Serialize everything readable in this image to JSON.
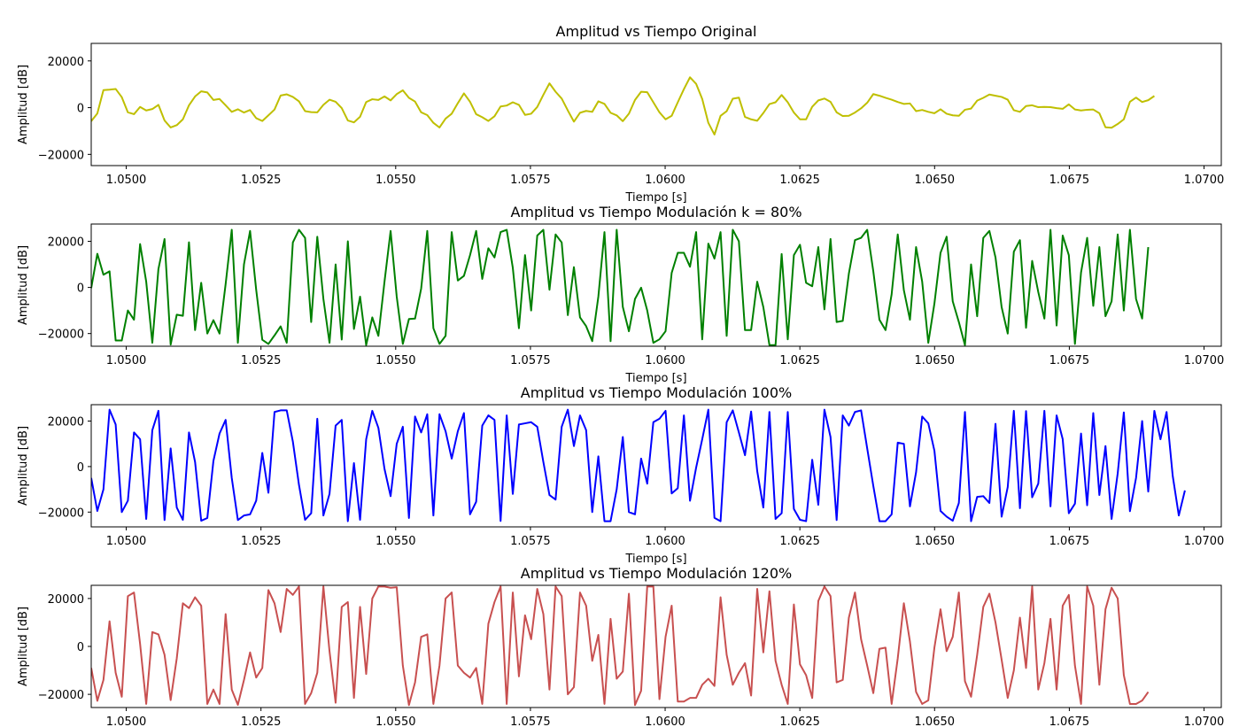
{
  "chart_data": [
    {
      "type": "line",
      "title": "Amplitud vs Tiempo Original",
      "xlabel": "Tiempo [s]",
      "ylabel": "Amplitud [dB]",
      "xlim": [
        1.04935,
        1.07032
      ],
      "ylim": [
        -24800,
        27500
      ],
      "xticks": [
        "1.0500",
        "1.0525",
        "1.0550",
        "1.0575",
        "1.0600",
        "1.0625",
        "1.0650",
        "1.0675",
        "1.0700"
      ],
      "yticks": [
        "20000",
        "0",
        "−20000"
      ],
      "color": "#bfbf00",
      "series": [
        {
          "x_start": 1.04935,
          "x_step": 0.00011338,
          "values": [
            -5800,
            -2500,
            7500,
            7700,
            8000,
            4500,
            -2000,
            -2800,
            300,
            -1200,
            -600,
            1200,
            -5500,
            -8500,
            -7500,
            -5000,
            1000,
            4800,
            7000,
            6500,
            3300,
            3700,
            1000,
            -1800,
            -700,
            -2100,
            -1000,
            -4500,
            -5700,
            -3300,
            -800,
            5200,
            5700,
            4600,
            2700,
            -1500,
            -1900,
            -2000,
            1200,
            3400,
            2500,
            -200,
            -5500,
            -6300,
            -3900,
            2400,
            3600,
            3300,
            4800,
            3100,
            5800,
            7400,
            4200,
            2600,
            -2000,
            -3200,
            -6500,
            -8500,
            -4700,
            -2600,
            1900,
            6100,
            2500,
            -2800,
            -4100,
            -5700,
            -3700,
            500,
            900,
            2300,
            1200,
            -3100,
            -2600,
            300,
            5500,
            10400,
            6800,
            3900,
            -1200,
            -6000,
            -2200,
            -1400,
            -1800,
            2700,
            1600,
            -2200,
            -3300,
            -5800,
            -2600,
            3300,
            6800,
            6600,
            2300,
            -2000,
            -5000,
            -3500,
            2300,
            7900,
            13000,
            10200,
            3700,
            -6500,
            -11500,
            -3500,
            -1500,
            3800,
            4300,
            -4000,
            -5000,
            -5600,
            -2300,
            1500,
            2300,
            5400,
            2300,
            -2100,
            -5000,
            -5000,
            400,
            3100,
            3900,
            2500,
            -2000,
            -3600,
            -3500,
            -2100,
            -300,
            2100,
            5800,
            5100,
            4200,
            3400,
            2400,
            1600,
            1800,
            -1500,
            -1000,
            -1800,
            -2400,
            -700,
            -2600,
            -3300,
            -3500,
            -900,
            -400,
            3000,
            4200,
            5600,
            5100,
            4600,
            3400,
            -1100,
            -1800,
            700,
            1000,
            200,
            300,
            200,
            -200,
            -500,
            1400,
            -800,
            -1200,
            -900,
            -800,
            -2400,
            -8400,
            -8600,
            -7000,
            -5000,
            2500,
            4300,
            2400,
            3200,
            5000
          ]
        }
      ]
    },
    {
      "type": "line",
      "title": "Amplitud vs Tiempo Modulación k = 80%",
      "xlabel": "Tiempo [s]",
      "ylabel": "Amplitud [dB]",
      "xlim": [
        1.04935,
        1.07032
      ],
      "ylim": [
        -25500,
        27500
      ],
      "xticks": [
        "1.0500",
        "1.0525",
        "1.0550",
        "1.0575",
        "1.0600",
        "1.0625",
        "1.0650",
        "1.0675",
        "1.0700"
      ],
      "yticks": [
        "20000",
        "0",
        "−20000"
      ],
      "color": "#008000",
      "series": [
        {
          "x_start": 1.04935,
          "x_step": 0.00011338,
          "values": [
            -300,
            14600,
            5500,
            7000,
            -23000,
            -23000,
            -10000,
            -14000,
            18800,
            2500,
            -24000,
            8000,
            21000,
            -24800,
            -11800,
            -12300,
            19600,
            -18500,
            2000,
            -20000,
            -14200,
            -20000,
            1500,
            25000,
            -24000,
            10000,
            24500,
            -1000,
            -22700,
            -24500,
            -20800,
            -16900,
            -24000,
            19500,
            25000,
            21500,
            -15000,
            22000,
            -5000,
            -24000,
            10000,
            -22600,
            20000,
            -18000,
            -4000,
            -25000,
            -13000,
            -21000,
            2500,
            24500,
            -4000,
            -24500,
            -13700,
            -13500,
            -500,
            24500,
            -17700,
            -24500,
            -21000,
            24000,
            3000,
            5000,
            14000,
            24500,
            3700,
            17000,
            13000,
            24000,
            25000,
            8500,
            -17700,
            14000,
            -10000,
            22500,
            25000,
            -1000,
            23000,
            19500,
            -12000,
            8800,
            -13000,
            -16800,
            -23300,
            -4000,
            24000,
            -23300,
            25000,
            -8400,
            -19000,
            -5000,
            -100,
            -10000,
            -24000,
            -22500,
            -19000,
            6300,
            15000,
            15000,
            9000,
            24000,
            -22500,
            19000,
            12500,
            24000,
            -21000,
            25000,
            20000,
            -18500,
            -18500,
            2500,
            -8500,
            -25000,
            -25000,
            14500,
            -22500,
            14000,
            18500,
            2000,
            500,
            17500,
            -9500,
            21000,
            -15000,
            -14500,
            6000,
            20500,
            21500,
            25000,
            7000,
            -14000,
            -18500,
            -3000,
            23000,
            -1200,
            -14000,
            17500,
            2500,
            -24000,
            -7000,
            15000,
            22000,
            -6000,
            -15000,
            -25000,
            10000,
            -12500,
            21500,
            24500,
            13000,
            -8500,
            -20000,
            15500,
            20500,
            -17500,
            11500,
            -2000,
            -13500,
            25000,
            -16500,
            22500,
            14000,
            -24500,
            6500,
            21500,
            -8000,
            17500,
            -12500,
            -6000,
            23000,
            -10000,
            25000,
            -5000,
            -13500,
            17500
          ]
        }
      ]
    },
    {
      "type": "line",
      "title": "Amplitud vs Tiempo Modulación 100%",
      "xlabel": "Tiempo [s]",
      "ylabel": "Amplitud [dB]",
      "xlim": [
        1.04935,
        1.07032
      ],
      "ylim": [
        -26500,
        27200
      ],
      "xticks": [
        "1.0500",
        "1.0525",
        "1.0550",
        "1.0575",
        "1.0600",
        "1.0625",
        "1.0650",
        "1.0675",
        "1.0700"
      ],
      "yticks": [
        "20000",
        "0",
        "−20000"
      ],
      "color": "#0000ff",
      "series": [
        {
          "x_start": 1.04935,
          "x_step": 0.00011338,
          "values": [
            -5000,
            -19500,
            -10000,
            25000,
            18500,
            -20000,
            -15000,
            15000,
            12000,
            -23000,
            16000,
            24500,
            -23500,
            8000,
            -18000,
            -23400,
            15000,
            2000,
            -23800,
            -22600,
            2500,
            14500,
            20500,
            -5000,
            -23500,
            -21500,
            -21000,
            -15000,
            6000,
            -11500,
            24000,
            24700,
            24700,
            11000,
            -8000,
            -23400,
            -20500,
            21000,
            -21500,
            -12000,
            18000,
            20500,
            -24000,
            1500,
            -23400,
            12000,
            24500,
            17000,
            -1000,
            -13000,
            10000,
            17500,
            -22600,
            22000,
            15000,
            23000,
            -21500,
            23000,
            15500,
            3500,
            15500,
            23500,
            -21000,
            -15500,
            18000,
            22500,
            20500,
            -23900,
            22500,
            -12000,
            18500,
            19000,
            19500,
            17500,
            2000,
            -12500,
            -14500,
            17500,
            25000,
            9000,
            22500,
            16000,
            -20000,
            4500,
            -24000,
            -24000,
            -10000,
            13000,
            -20000,
            -21000,
            3500,
            -7500,
            19500,
            21000,
            24500,
            -11800,
            -9500,
            22500,
            -15000,
            -500,
            12000,
            25000,
            -22500,
            -24000,
            19500,
            24700,
            15000,
            5000,
            24200,
            -2000,
            -18000,
            24000,
            -23000,
            -20500,
            24000,
            -18600,
            -23400,
            -24000,
            3000,
            -16800,
            25000,
            13000,
            -23500,
            22500,
            18000,
            24000,
            24700,
            8000,
            -8500,
            -24000,
            -24000,
            -21000,
            10500,
            10000,
            -17500,
            -2500,
            22000,
            19000,
            7000,
            -19500,
            -22000,
            -23800,
            -16000,
            24000,
            -24000,
            -13300,
            -13000,
            -16000,
            18800,
            -22000,
            -9000,
            24500,
            -18300,
            24400,
            -13500,
            -7500,
            24500,
            -17500,
            22500,
            12000,
            -20500,
            -16300,
            14500,
            -17000,
            23500,
            -12500,
            9000,
            -23000,
            -3000,
            23800,
            -19600,
            -5000,
            20000,
            -11000,
            24500,
            12000,
            24000,
            -4000,
            -21500,
            -10500
          ]
        }
      ]
    },
    {
      "type": "line",
      "title": "Amplitud vs Tiempo Modulación 120%",
      "xlabel": "",
      "ylabel": "Amplitud [dB]",
      "xlim": [
        1.04935,
        1.07032
      ],
      "ylim": [
        -25500,
        25500
      ],
      "xticks": [
        "1.0500",
        "1.0525",
        "1.0550",
        "1.0575",
        "1.0600",
        "1.0625",
        "1.0650",
        "1.0675",
        "1.0700"
      ],
      "yticks": [
        "20000",
        "0",
        "−20000"
      ],
      "color": "#c85050",
      "series": [
        {
          "x_start": 1.04935,
          "x_step": 0.00011338,
          "values": [
            -9000,
            -22700,
            -14000,
            10500,
            -11000,
            -21000,
            21000,
            22500,
            1000,
            -24000,
            6000,
            5000,
            -3500,
            -22400,
            -5000,
            18000,
            16000,
            20500,
            17000,
            -24000,
            -18000,
            -24000,
            13500,
            -18000,
            -24400,
            -14000,
            -2500,
            -13000,
            -9000,
            23500,
            18000,
            6000,
            24000,
            21500,
            25000,
            -24000,
            -19500,
            -11000,
            25000,
            -2000,
            -23500,
            16500,
            18500,
            -21500,
            16500,
            -11500,
            20000,
            25000,
            25000,
            24500,
            24700,
            -8000,
            -24500,
            -15000,
            4000,
            5000,
            -24000,
            -8000,
            20000,
            22500,
            -8000,
            -11000,
            -13000,
            -9000,
            -24000,
            9500,
            18500,
            25000,
            -24000,
            22500,
            -12500,
            13000,
            3000,
            24000,
            13500,
            -18000,
            25000,
            21000,
            -20000,
            -17000,
            22500,
            17000,
            -6000,
            4800,
            -24000,
            11500,
            -13500,
            -10500,
            22000,
            -24500,
            -18500,
            25000,
            25000,
            -22000,
            4000,
            17000,
            -23000,
            -23000,
            -21500,
            -21500,
            -16000,
            -13500,
            -16500,
            20500,
            -3500,
            -16000,
            -11000,
            -7000,
            -20500,
            24000,
            -2500,
            23000,
            -6000,
            -16000,
            -24000,
            17500,
            -7500,
            -12000,
            -21500,
            19000,
            25000,
            21000,
            -15000,
            -14000,
            12000,
            22500,
            3000,
            -8000,
            -19500,
            -1000,
            -500,
            -24000,
            -5000,
            18000,
            2000,
            -19000,
            -24000,
            -22500,
            -500,
            15500,
            -2000,
            4000,
            22500,
            -14500,
            -21000,
            -3500,
            16500,
            22000,
            10000,
            -5500,
            -21500,
            -10000,
            12000,
            -9000,
            25000,
            -18000,
            -7000,
            11500,
            -18000,
            17000,
            21500,
            -8000,
            -24000,
            25000,
            17000,
            -16000,
            15500,
            24500,
            20000,
            -12000,
            -24000,
            -24000,
            -22600,
            -19000
          ]
        }
      ]
    }
  ]
}
